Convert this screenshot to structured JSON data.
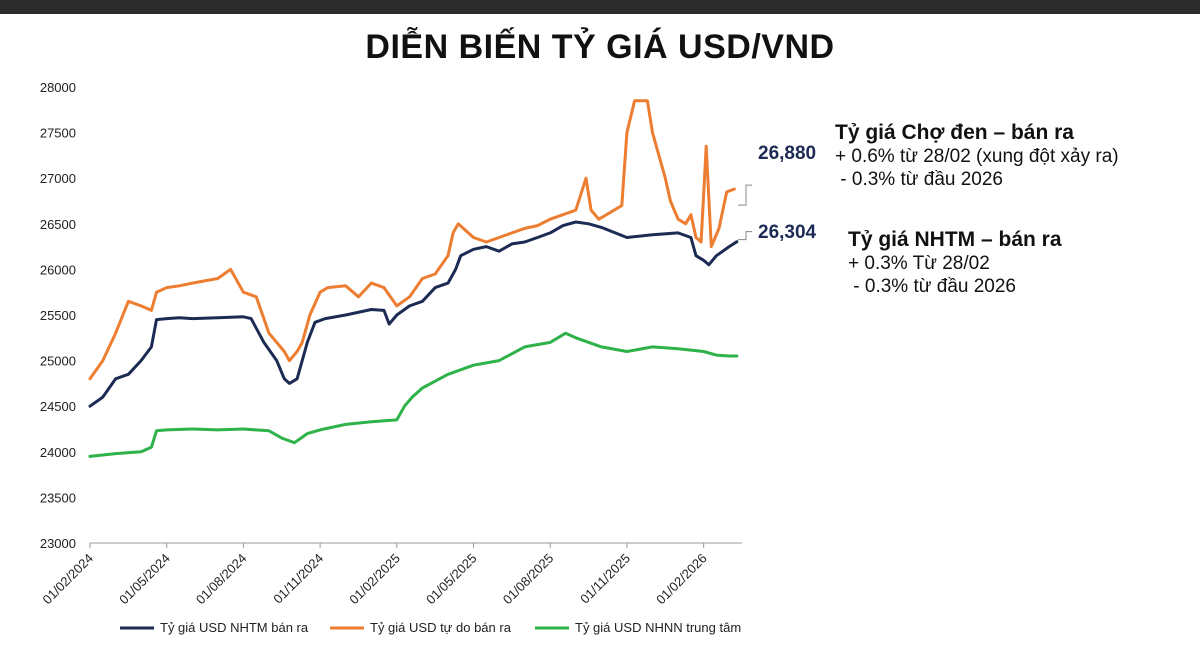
{
  "title": "DIỄN BIẾN TỶ GIÁ USD/VND",
  "chart_data": {
    "type": "line",
    "title": "DIỄN BIẾN TỶ GIÁ USD/VND",
    "ylim": [
      23000,
      28000
    ],
    "yticks": [
      23000,
      23500,
      24000,
      24500,
      25000,
      25500,
      26000,
      26500,
      27000,
      27500,
      28000
    ],
    "xlim": [
      0,
      25.5
    ],
    "x_unit": "months since 01/02/2024",
    "xtick_labels": [
      "01/02/2024",
      "01/05/2024",
      "01/08/2024",
      "01/11/2024",
      "01/02/2025",
      "01/05/2025",
      "01/08/2025",
      "01/11/2025",
      "01/02/2026"
    ],
    "xtick_positions": [
      0,
      3,
      6,
      9,
      12,
      15,
      18,
      21,
      24
    ],
    "series": [
      {
        "name": "Tỷ giá USD NHTM bán ra",
        "color": "#1c2b54",
        "x": [
          0,
          0.5,
          1,
          1.5,
          2,
          2.4,
          2.6,
          3,
          3.5,
          4,
          5,
          6,
          6.3,
          6.8,
          7.3,
          7.6,
          7.8,
          8.1,
          8.3,
          8.5,
          8.8,
          9.2,
          10,
          11,
          11.5,
          11.7,
          12,
          12.5,
          13,
          13.5,
          14,
          14.3,
          14.5,
          15,
          15.5,
          16,
          16.5,
          17,
          17.5,
          18,
          18.5,
          19,
          19.5,
          20,
          21,
          22,
          23,
          23.5,
          23.7,
          24,
          24.2,
          24.5,
          25,
          25.3
        ],
        "values": [
          24500,
          24600,
          24800,
          24850,
          25000,
          25150,
          25450,
          25460,
          25470,
          25460,
          25470,
          25480,
          25460,
          25200,
          25000,
          24800,
          24750,
          24800,
          25000,
          25200,
          25420,
          25460,
          25500,
          25560,
          25550,
          25400,
          25500,
          25600,
          25650,
          25800,
          25850,
          26000,
          26150,
          26220,
          26250,
          26200,
          26280,
          26300,
          26350,
          26400,
          26480,
          26520,
          26500,
          26460,
          26350,
          26380,
          26400,
          26350,
          26150,
          26100,
          26050,
          26150,
          26250,
          26304
        ]
      },
      {
        "name": "Tỷ giá USD tự do bán ra",
        "color": "#ec7d31",
        "x": [
          0,
          0.5,
          1,
          1.5,
          2,
          2.4,
          2.6,
          3,
          3.5,
          4,
          5,
          5.5,
          6,
          6.5,
          7,
          7.3,
          7.6,
          7.8,
          8.1,
          8.3,
          8.6,
          9,
          9.3,
          10,
          10.5,
          11,
          11.5,
          12,
          12.5,
          13,
          13.5,
          14,
          14.2,
          14.4,
          14.6,
          15,
          15.5,
          16,
          16.5,
          17,
          17.5,
          18,
          18.5,
          19,
          19.4,
          19.6,
          19.9,
          20.2,
          20.8,
          21,
          21.3,
          21.8,
          22,
          22.5,
          22.7,
          23,
          23.3,
          23.5,
          23.7,
          23.9,
          24.1,
          24.3,
          24.6,
          24.9,
          25.2
        ],
        "values": [
          24800,
          25000,
          25300,
          25650,
          25600,
          25550,
          25750,
          25800,
          25820,
          25850,
          25900,
          26000,
          25750,
          25700,
          25300,
          25200,
          25100,
          25000,
          25100,
          25200,
          25500,
          25750,
          25800,
          25820,
          25700,
          25850,
          25800,
          25600,
          25700,
          25900,
          25950,
          26150,
          26400,
          26500,
          26450,
          26350,
          26300,
          26350,
          26400,
          26450,
          26480,
          26550,
          26600,
          26650,
          27000,
          26650,
          26550,
          26600,
          26700,
          27500,
          27850,
          27850,
          27500,
          27000,
          26750,
          26550,
          26500,
          26600,
          26350,
          26300,
          27350,
          26250,
          26450,
          26850,
          26880
        ]
      },
      {
        "name": "Tỷ giá USD NHNN trung tâm",
        "color": "#2fb24a",
        "x": [
          0,
          1,
          2,
          2.4,
          2.6,
          3,
          4,
          5,
          6,
          7,
          7.5,
          8,
          8.5,
          9,
          10,
          11,
          12,
          12.3,
          12.6,
          13,
          14,
          15,
          16,
          17,
          18,
          18.6,
          19,
          20,
          21,
          22,
          23,
          24,
          24.5,
          25,
          25.3
        ],
        "values": [
          23950,
          23980,
          24000,
          24050,
          24230,
          24240,
          24250,
          24240,
          24250,
          24230,
          24150,
          24100,
          24200,
          24240,
          24300,
          24330,
          24350,
          24500,
          24600,
          24700,
          24850,
          24950,
          25000,
          25150,
          25200,
          25300,
          25250,
          25150,
          25100,
          25150,
          25130,
          25100,
          25060,
          25050,
          25050
        ]
      }
    ],
    "annotations": {
      "latest_values": [
        "26,880",
        "26,304"
      ]
    }
  },
  "legend": [
    {
      "label": "Tỷ giá USD NHTM bán ra",
      "color": "#1c2b54"
    },
    {
      "label": "Tỷ giá USD tự do bán ra",
      "color": "#ec7d31"
    },
    {
      "label": "Tỷ giá USD NHNN trung tâm",
      "color": "#2fb24a"
    }
  ],
  "callouts": {
    "black_market": {
      "heading": "Tỷ giá Chợ đen – bán ra",
      "lines": [
        "+ 0.6% từ 28/02 (xung đột xảy ra)",
        " - 0.3% từ đầu 2026"
      ]
    },
    "nhtm": {
      "heading": "Tỷ giá NHTM – bán ra",
      "lines": [
        "+ 0.3% Từ 28/02",
        " - 0.3% từ đầu 2026"
      ]
    }
  }
}
